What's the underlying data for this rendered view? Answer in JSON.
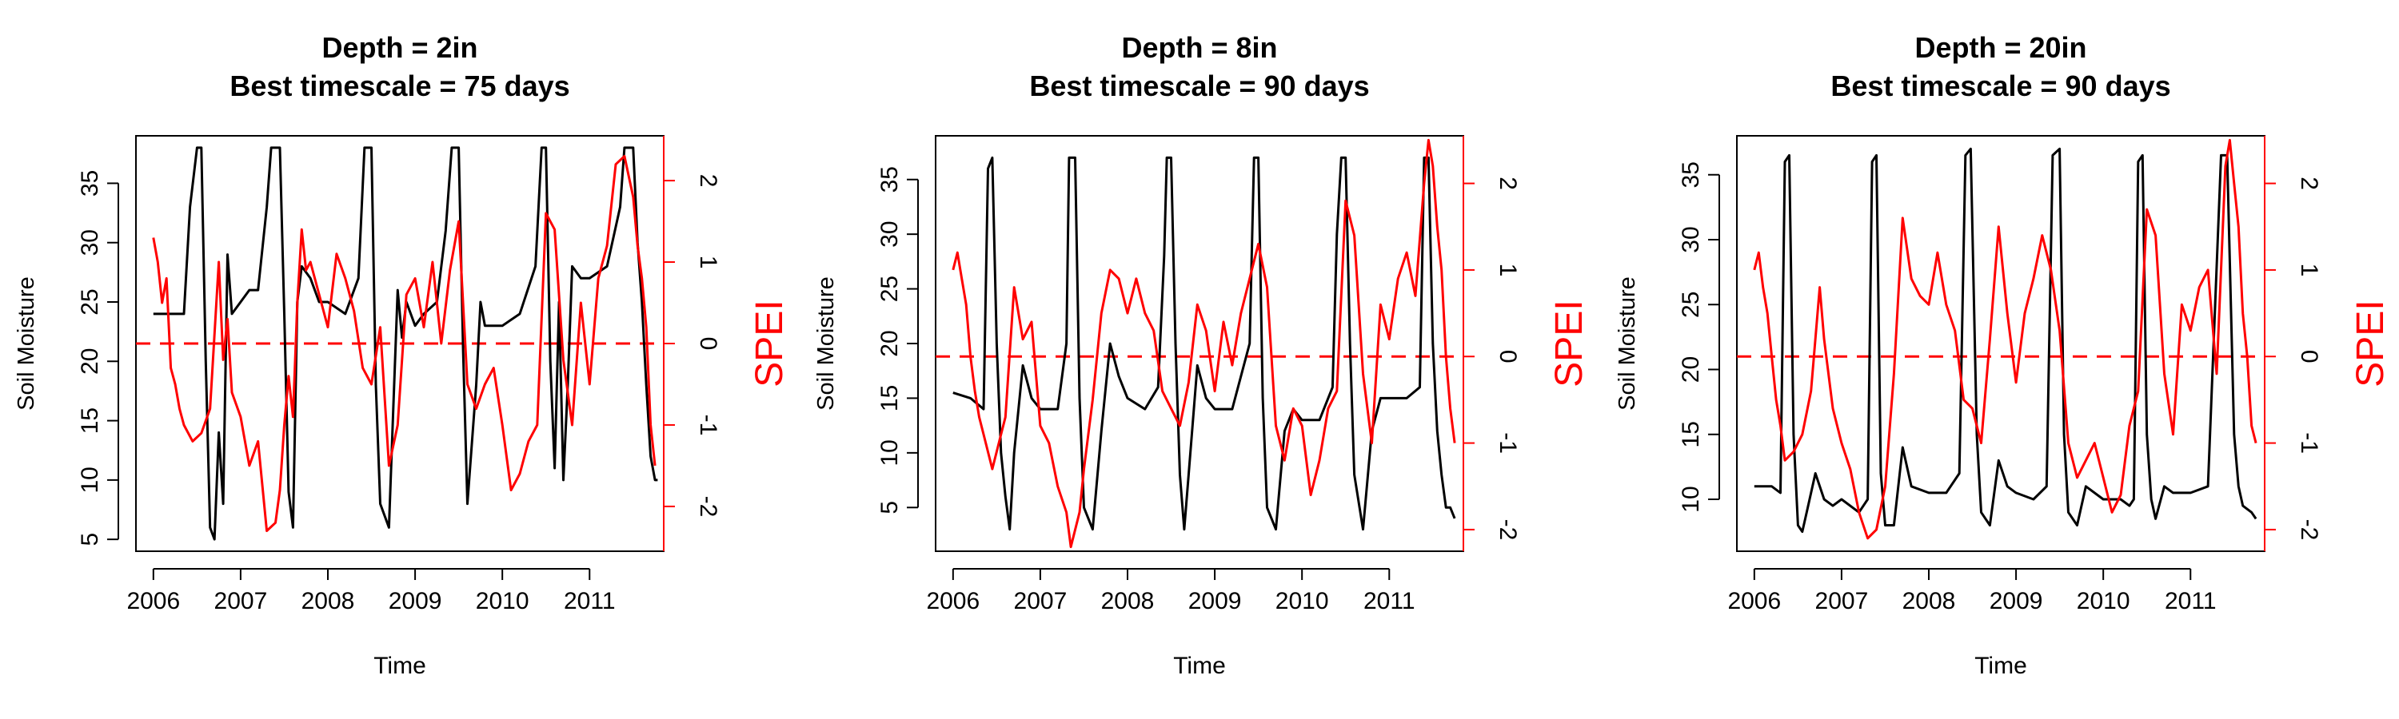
{
  "colors": {
    "soil": "#000000",
    "spei": "#ff0000",
    "axis": "#000000",
    "background": "#ffffff"
  },
  "chart_data": [
    {
      "type": "line",
      "title": "Depth = 2in",
      "subtitle": "Best timescale = 75 days",
      "xlabel": "Time",
      "ylabel": "Soil Moisture",
      "y2label": "SPEI",
      "xlim": [
        2005.8,
        2011.85
      ],
      "ylim": [
        4,
        39
      ],
      "y2lim": [
        -2.55,
        2.55
      ],
      "xticks": [
        2006,
        2007,
        2008,
        2009,
        2010,
        2011
      ],
      "xtick_labels": [
        "2006",
        "2007",
        "2008",
        "2009",
        "2010",
        "2011"
      ],
      "yticks": [
        5,
        10,
        15,
        20,
        25,
        30,
        35
      ],
      "yticks_labels": [
        "5",
        "10",
        "15",
        "20",
        "25",
        "30",
        "35"
      ],
      "y2ticks": [
        -2,
        -1,
        0,
        1,
        2
      ],
      "y2ticks_labels": [
        "-2",
        "-1",
        "0",
        "1",
        "2"
      ],
      "reference_line": {
        "axis": "y2",
        "value": 0,
        "style": "dashed"
      },
      "series": [
        {
          "name": "Soil Moisture",
          "axis": "y",
          "x": [
            2006.0,
            2006.2,
            2006.35,
            2006.42,
            2006.5,
            2006.55,
            2006.6,
            2006.65,
            2006.7,
            2006.75,
            2006.8,
            2006.85,
            2006.9,
            2007.0,
            2007.1,
            2007.2,
            2007.3,
            2007.35,
            2007.45,
            2007.5,
            2007.55,
            2007.6,
            2007.65,
            2007.7,
            2007.8,
            2007.9,
            2008.0,
            2008.2,
            2008.35,
            2008.42,
            2008.5,
            2008.55,
            2008.6,
            2008.7,
            2008.75,
            2008.8,
            2008.85,
            2008.9,
            2009.0,
            2009.1,
            2009.25,
            2009.35,
            2009.42,
            2009.5,
            2009.55,
            2009.6,
            2009.7,
            2009.75,
            2009.8,
            2009.9,
            2010.0,
            2010.2,
            2010.38,
            2010.45,
            2010.5,
            2010.55,
            2010.6,
            2010.65,
            2010.7,
            2010.75,
            2010.8,
            2010.9,
            2011.0,
            2011.2,
            2011.35,
            2011.4,
            2011.5,
            2011.55,
            2011.6,
            2011.65,
            2011.7,
            2011.75,
            2011.78
          ],
          "values": [
            24,
            24,
            24,
            33,
            38,
            38,
            20,
            6,
            5,
            14,
            8,
            29,
            24,
            25,
            26,
            26,
            33,
            38,
            38,
            24,
            9,
            6,
            25,
            28,
            27,
            25,
            25,
            24,
            27,
            38,
            38,
            18,
            8,
            6,
            16,
            26,
            22,
            25,
            23,
            24,
            25,
            31,
            38,
            38,
            21,
            8,
            18,
            25,
            23,
            23,
            23,
            24,
            28,
            38,
            38,
            20,
            11,
            25,
            10,
            18,
            28,
            27,
            27,
            28,
            33,
            38,
            38,
            30,
            25,
            18,
            12,
            10,
            10
          ]
        },
        {
          "name": "SPEI",
          "axis": "y2",
          "x": [
            2006.0,
            2006.05,
            2006.1,
            2006.15,
            2006.2,
            2006.25,
            2006.3,
            2006.35,
            2006.45,
            2006.55,
            2006.65,
            2006.75,
            2006.8,
            2006.85,
            2006.9,
            2007.0,
            2007.1,
            2007.2,
            2007.3,
            2007.4,
            2007.45,
            2007.5,
            2007.55,
            2007.6,
            2007.65,
            2007.7,
            2007.75,
            2007.8,
            2007.9,
            2008.0,
            2008.1,
            2008.2,
            2008.3,
            2008.4,
            2008.5,
            2008.6,
            2008.7,
            2008.8,
            2008.9,
            2009.0,
            2009.1,
            2009.2,
            2009.3,
            2009.4,
            2009.5,
            2009.6,
            2009.7,
            2009.8,
            2009.9,
            2010.0,
            2010.1,
            2010.2,
            2010.3,
            2010.4,
            2010.5,
            2010.6,
            2010.7,
            2010.8,
            2010.9,
            2011.0,
            2011.1,
            2011.2,
            2011.3,
            2011.4,
            2011.5,
            2011.55,
            2011.6,
            2011.65,
            2011.7,
            2011.75
          ],
          "values": [
            1.3,
            1.0,
            0.5,
            0.8,
            -0.3,
            -0.5,
            -0.8,
            -1.0,
            -1.2,
            -1.1,
            -0.8,
            1.0,
            -0.2,
            0.3,
            -0.6,
            -0.9,
            -1.5,
            -1.2,
            -2.3,
            -2.2,
            -1.8,
            -1.0,
            -0.4,
            -0.9,
            0.5,
            1.4,
            0.9,
            1.0,
            0.6,
            0.2,
            1.1,
            0.8,
            0.4,
            -0.3,
            -0.5,
            0.2,
            -1.5,
            -1.0,
            0.6,
            0.8,
            0.2,
            1.0,
            0.0,
            0.9,
            1.5,
            -0.5,
            -0.8,
            -0.5,
            -0.3,
            -1.0,
            -1.8,
            -1.6,
            -1.2,
            -1.0,
            1.6,
            1.4,
            -0.2,
            -1.0,
            0.5,
            -0.5,
            0.8,
            1.2,
            2.2,
            2.3,
            1.8,
            1.2,
            0.8,
            0.2,
            -1.0,
            -1.5
          ]
        }
      ]
    },
    {
      "type": "line",
      "title": "Depth = 8in",
      "subtitle": "Best timescale = 90 days",
      "xlabel": "Time",
      "ylabel": "Soil Moisture",
      "y2label": "SPEI",
      "xlim": [
        2005.8,
        2011.85
      ],
      "ylim": [
        1,
        39
      ],
      "y2lim": [
        -2.25,
        2.55
      ],
      "xticks": [
        2006,
        2007,
        2008,
        2009,
        2010,
        2011
      ],
      "xtick_labels": [
        "2006",
        "2007",
        "2008",
        "2009",
        "2010",
        "2011"
      ],
      "yticks": [
        5,
        10,
        15,
        20,
        25,
        30,
        35
      ],
      "yticks_labels": [
        "5",
        "10",
        "15",
        "20",
        "25",
        "30",
        "35"
      ],
      "y2ticks": [
        -2,
        -1,
        0,
        1,
        2
      ],
      "y2ticks_labels": [
        "-2",
        "-1",
        "0",
        "1",
        "2"
      ],
      "reference_line": {
        "axis": "y2",
        "value": 0,
        "style": "dashed"
      },
      "series": [
        {
          "name": "Soil Moisture",
          "axis": "y",
          "x": [
            2006.0,
            2006.2,
            2006.35,
            2006.4,
            2006.45,
            2006.5,
            2006.55,
            2006.6,
            2006.65,
            2006.7,
            2006.8,
            2006.9,
            2007.0,
            2007.2,
            2007.3,
            2007.33,
            2007.4,
            2007.45,
            2007.5,
            2007.6,
            2007.7,
            2007.8,
            2007.9,
            2008.0,
            2008.2,
            2008.35,
            2008.42,
            2008.45,
            2008.5,
            2008.55,
            2008.6,
            2008.65,
            2008.7,
            2008.8,
            2008.9,
            2009.0,
            2009.2,
            2009.4,
            2009.45,
            2009.5,
            2009.55,
            2009.6,
            2009.7,
            2009.8,
            2009.9,
            2010.0,
            2010.2,
            2010.35,
            2010.4,
            2010.45,
            2010.5,
            2010.55,
            2010.6,
            2010.7,
            2010.8,
            2010.9,
            2011.0,
            2011.2,
            2011.35,
            2011.4,
            2011.45,
            2011.5,
            2011.55,
            2011.6,
            2011.65,
            2011.7,
            2011.75
          ],
          "values": [
            15.5,
            15,
            14,
            36,
            37,
            20,
            10,
            6,
            3,
            10,
            18,
            15,
            14,
            14,
            20,
            37,
            37,
            15,
            5,
            3,
            12,
            20,
            17,
            15,
            14,
            16,
            28,
            37,
            37,
            20,
            8,
            3,
            8,
            18,
            15,
            14,
            14,
            20,
            37,
            37,
            15,
            5,
            3,
            12,
            14,
            13,
            13,
            16,
            30,
            37,
            37,
            20,
            8,
            3,
            12,
            15,
            15,
            15,
            16,
            37,
            37,
            20,
            12,
            8,
            5,
            5,
            4
          ]
        },
        {
          "name": "SPEI",
          "axis": "y2",
          "x": [
            2006.0,
            2006.05,
            2006.1,
            2006.15,
            2006.2,
            2006.25,
            2006.3,
            2006.35,
            2006.45,
            2006.55,
            2006.6,
            2006.7,
            2006.8,
            2006.9,
            2007.0,
            2007.1,
            2007.2,
            2007.3,
            2007.35,
            2007.45,
            2007.5,
            2007.6,
            2007.7,
            2007.8,
            2007.9,
            2008.0,
            2008.1,
            2008.2,
            2008.3,
            2008.4,
            2008.5,
            2008.6,
            2008.7,
            2008.8,
            2008.9,
            2009.0,
            2009.1,
            2009.2,
            2009.3,
            2009.4,
            2009.5,
            2009.6,
            2009.7,
            2009.8,
            2009.9,
            2010.0,
            2010.1,
            2010.2,
            2010.3,
            2010.4,
            2010.5,
            2010.6,
            2010.7,
            2010.8,
            2010.9,
            2011.0,
            2011.1,
            2011.2,
            2011.3,
            2011.4,
            2011.45,
            2011.5,
            2011.55,
            2011.6,
            2011.65,
            2011.7,
            2011.75
          ],
          "values": [
            1.0,
            1.2,
            0.9,
            0.6,
            0.0,
            -0.4,
            -0.7,
            -0.9,
            -1.3,
            -0.9,
            -0.7,
            0.8,
            0.2,
            0.4,
            -0.8,
            -1.0,
            -1.5,
            -1.8,
            -2.2,
            -1.8,
            -1.3,
            -0.5,
            0.5,
            1.0,
            0.9,
            0.5,
            0.9,
            0.5,
            0.3,
            -0.4,
            -0.6,
            -0.8,
            -0.3,
            0.6,
            0.3,
            -0.4,
            0.4,
            -0.1,
            0.5,
            0.9,
            1.3,
            0.8,
            -0.8,
            -1.2,
            -0.6,
            -0.8,
            -1.6,
            -1.2,
            -0.6,
            -0.4,
            1.8,
            1.4,
            -0.2,
            -1.0,
            0.6,
            0.2,
            0.9,
            1.2,
            0.7,
            2.0,
            2.5,
            2.2,
            1.5,
            1.0,
            0.0,
            -0.6,
            -1.0
          ]
        }
      ]
    },
    {
      "type": "line",
      "title": "Depth = 20in",
      "subtitle": "Best timescale = 90 days",
      "xlabel": "Time",
      "ylabel": "Soil Moisture",
      "y2label": "SPEI",
      "xlim": [
        2005.8,
        2011.85
      ],
      "ylim": [
        6,
        38
      ],
      "y2lim": [
        -2.25,
        2.55
      ],
      "xticks": [
        2006,
        2007,
        2008,
        2009,
        2010,
        2011
      ],
      "xtick_labels": [
        "2006",
        "2007",
        "2008",
        "2009",
        "2010",
        "2011"
      ],
      "yticks": [
        10,
        15,
        20,
        25,
        30,
        35
      ],
      "yticks_labels": [
        "10",
        "15",
        "20",
        "25",
        "30",
        "35"
      ],
      "y2ticks": [
        -2,
        -1,
        0,
        1,
        2
      ],
      "y2ticks_labels": [
        "-2",
        "-1",
        "0",
        "1",
        "2"
      ],
      "reference_line": {
        "axis": "y2",
        "value": 0,
        "style": "dashed"
      },
      "series": [
        {
          "name": "Soil Moisture",
          "axis": "y",
          "x": [
            2006.0,
            2006.2,
            2006.3,
            2006.35,
            2006.4,
            2006.45,
            2006.5,
            2006.55,
            2006.6,
            2006.7,
            2006.8,
            2006.9,
            2007.0,
            2007.2,
            2007.3,
            2007.35,
            2007.4,
            2007.45,
            2007.5,
            2007.6,
            2007.7,
            2007.8,
            2008.0,
            2008.2,
            2008.35,
            2008.42,
            2008.48,
            2008.55,
            2008.6,
            2008.7,
            2008.8,
            2008.9,
            2009.0,
            2009.2,
            2009.35,
            2009.42,
            2009.5,
            2009.55,
            2009.6,
            2009.7,
            2009.8,
            2010.0,
            2010.2,
            2010.3,
            2010.35,
            2010.4,
            2010.45,
            2010.5,
            2010.55,
            2010.6,
            2010.7,
            2010.8,
            2010.9,
            2011.0,
            2011.2,
            2011.35,
            2011.42,
            2011.5,
            2011.55,
            2011.6,
            2011.7,
            2011.75
          ],
          "values": [
            11,
            11,
            10.5,
            36,
            36.5,
            15,
            8,
            7.5,
            9,
            12,
            10,
            9.5,
            10,
            9,
            10,
            36,
            36.5,
            12,
            8,
            8,
            14,
            11,
            10.5,
            10.5,
            12,
            36.5,
            37,
            15,
            9,
            8,
            13,
            11,
            10.5,
            10,
            11,
            36.5,
            37,
            15,
            9,
            8,
            11,
            10,
            10,
            9.5,
            10,
            36,
            36.5,
            15,
            10,
            8.5,
            11,
            10.5,
            10.5,
            10.5,
            11,
            36.5,
            36.5,
            15,
            11,
            9.5,
            9,
            8.5
          ]
        },
        {
          "name": "SPEI",
          "axis": "y2",
          "x": [
            2006.0,
            2006.05,
            2006.1,
            2006.15,
            2006.2,
            2006.25,
            2006.3,
            2006.35,
            2006.45,
            2006.55,
            2006.65,
            2006.75,
            2006.8,
            2006.9,
            2007.0,
            2007.1,
            2007.2,
            2007.3,
            2007.4,
            2007.5,
            2007.6,
            2007.7,
            2007.8,
            2007.9,
            2008.0,
            2008.1,
            2008.2,
            2008.3,
            2008.4,
            2008.5,
            2008.6,
            2008.7,
            2008.8,
            2008.9,
            2009.0,
            2009.1,
            2009.2,
            2009.3,
            2009.4,
            2009.5,
            2009.6,
            2009.7,
            2009.8,
            2009.9,
            2010.0,
            2010.1,
            2010.2,
            2010.3,
            2010.4,
            2010.5,
            2010.6,
            2010.7,
            2010.8,
            2010.9,
            2011.0,
            2011.1,
            2011.2,
            2011.3,
            2011.4,
            2011.45,
            2011.5,
            2011.55,
            2011.6,
            2011.65,
            2011.7,
            2011.75
          ],
          "values": [
            1.0,
            1.2,
            0.8,
            0.5,
            0.0,
            -0.5,
            -0.8,
            -1.2,
            -1.1,
            -0.9,
            -0.4,
            0.8,
            0.2,
            -0.6,
            -1.0,
            -1.3,
            -1.8,
            -2.1,
            -2.0,
            -1.5,
            -0.2,
            1.6,
            0.9,
            0.7,
            0.6,
            1.2,
            0.6,
            0.3,
            -0.5,
            -0.6,
            -1.0,
            0.2,
            1.5,
            0.5,
            -0.3,
            0.5,
            0.9,
            1.4,
            1.0,
            0.3,
            -1.0,
            -1.4,
            -1.2,
            -1.0,
            -1.4,
            -1.8,
            -1.6,
            -0.8,
            -0.4,
            1.7,
            1.4,
            -0.2,
            -0.9,
            0.6,
            0.3,
            0.8,
            1.0,
            -0.2,
            2.2,
            2.5,
            2.0,
            1.5,
            0.5,
            0.0,
            -0.8,
            -1.0
          ]
        }
      ]
    }
  ]
}
